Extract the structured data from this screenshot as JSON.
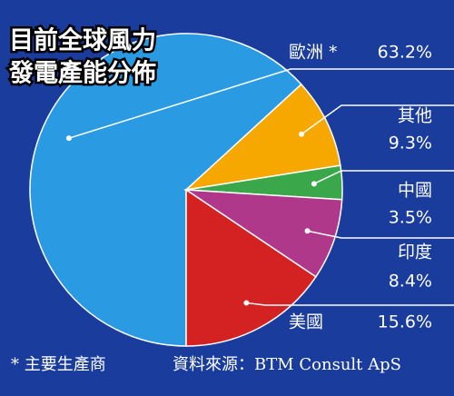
{
  "chart_data": {
    "type": "pie",
    "title": [
      "目前全球風力",
      "發電產能分佈"
    ],
    "categories": [
      "歐洲 *",
      "其他",
      "中國",
      "印度",
      "美國"
    ],
    "values": [
      63.2,
      9.3,
      3.5,
      8.4,
      15.6
    ],
    "value_labels": [
      "63.2%",
      "9.3%",
      "3.5%",
      "8.4%",
      "15.6%"
    ],
    "colors": [
      "#2a9be2",
      "#f6a800",
      "#3aa84a",
      "#b0388a",
      "#d42222"
    ],
    "footnote": "* 主要生產商",
    "source": "資料來源：BTM Consult ApS"
  }
}
